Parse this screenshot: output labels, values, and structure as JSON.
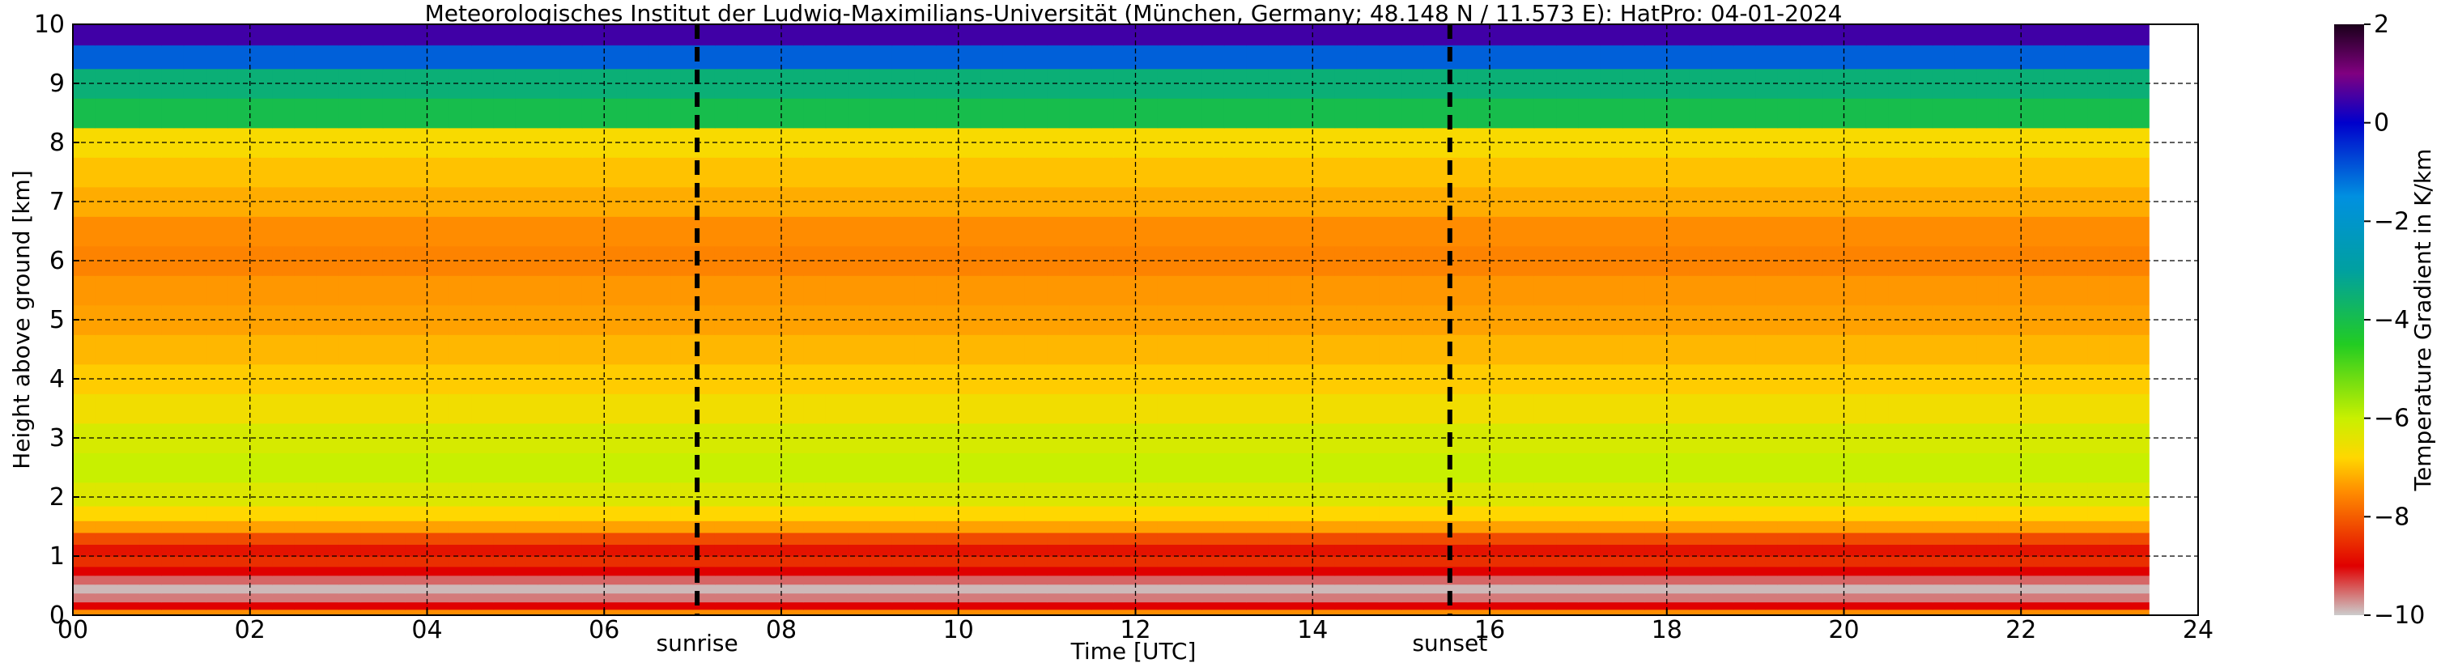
{
  "chart_data": {
    "type": "heatmap",
    "title": "Meteorologisches Institut der Ludwig-Maximilians-Universität (München, Germany; 48.148 N / 11.573 E):    HatPro: 04-01-2024",
    "xlabel": "Time [UTC]",
    "ylabel": "Height above ground [km]",
    "xlim": [
      0,
      24
    ],
    "ylim": [
      0,
      10
    ],
    "x_ticks": [
      0,
      2,
      4,
      6,
      8,
      10,
      12,
      14,
      16,
      18,
      20,
      22,
      24
    ],
    "x_tick_labels": [
      "00",
      "02",
      "04",
      "06",
      "08",
      "10",
      "12",
      "14",
      "16",
      "18",
      "20",
      "22",
      "24"
    ],
    "y_ticks": [
      0,
      1,
      2,
      3,
      4,
      5,
      6,
      7,
      8,
      9,
      10
    ],
    "y_tick_labels": [
      "0",
      "1",
      "2",
      "3",
      "4",
      "5",
      "6",
      "7",
      "8",
      "9",
      "10"
    ],
    "grid": true,
    "colorbar": {
      "label": "Temperature Gradient in K/km",
      "range": [
        -10,
        2
      ],
      "ticks": [
        2,
        0,
        -2,
        -4,
        -6,
        -8,
        -10
      ],
      "tick_labels": [
        "2",
        "0",
        "−2",
        "−4",
        "−6",
        "−8",
        "−10"
      ],
      "colors": [
        "#cccccc",
        "#e00000",
        "#ff8c00",
        "#ffd700",
        "#c8f000",
        "#22cc22",
        "#00a0a0",
        "#0090e0",
        "#0000cc",
        "#800080",
        "#1a001a"
      ],
      "color_stops": [
        -10,
        -9,
        -7.5,
        -6.8,
        -6,
        -4.5,
        -3,
        -1.5,
        0,
        1,
        2
      ]
    },
    "markers": [
      {
        "label": "sunrise",
        "x": 7.05
      },
      {
        "label": "sunset",
        "x": 15.55
      }
    ],
    "data_end_x": 23.45,
    "profile": {
      "heights_km": [
        0.05,
        0.15,
        0.3,
        0.45,
        0.6,
        0.75,
        0.9,
        1.1,
        1.3,
        1.5,
        1.7,
        2.0,
        2.5,
        3.0,
        3.5,
        4.0,
        4.5,
        5.0,
        5.5,
        6.0,
        6.5,
        7.0,
        7.5,
        8.0,
        8.5,
        9.0,
        9.5,
        9.8
      ],
      "gradient_K_per_km": [
        -7.5,
        -9.0,
        -9.6,
        -9.9,
        -9.5,
        -9.0,
        -8.5,
        -8.8,
        -8.2,
        -7.3,
        -6.8,
        -6.3,
        -6.0,
        -6.2,
        -6.6,
        -6.9,
        -7.1,
        -7.3,
        -7.4,
        -7.6,
        -7.5,
        -7.2,
        -7.0,
        -6.7,
        -4.0,
        -3.5,
        -1.0,
        0.5
      ]
    }
  }
}
